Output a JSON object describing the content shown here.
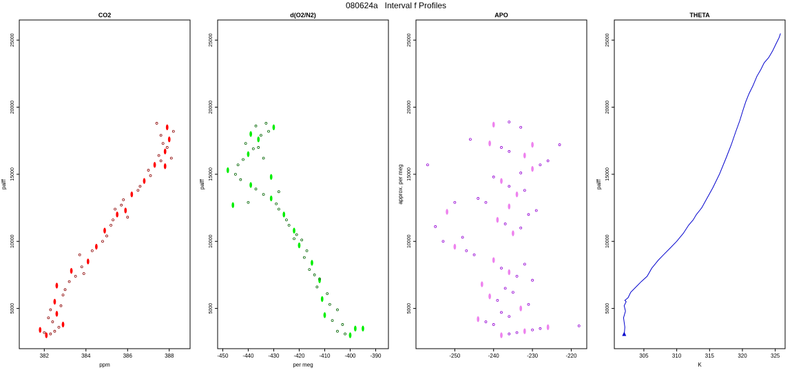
{
  "page_title": "080624a   Interval f Profiles",
  "chart_data": [
    {
      "type": "scatter",
      "title": "CO2",
      "xlabel": "ppm",
      "ylabel": "palff",
      "xlim": [
        380.8,
        389.0
      ],
      "ylim": [
        2000,
        26500
      ],
      "xticks": [
        382,
        384,
        386,
        388
      ],
      "yticks": [
        5000,
        10000,
        15000,
        20000,
        25000
      ],
      "color": "#ff0000",
      "outline_color": "#8b0000",
      "series": [
        {
          "x": [
            382.1,
            382.3,
            382.0,
            381.8,
            382.5,
            382.7,
            382.9,
            382.4,
            382.2,
            382.6,
            382.3,
            382.8,
            382.5,
            382.9,
            383.0,
            382.6,
            383.2,
            383.5,
            383.3,
            383.8,
            383.9,
            384.1,
            383.7,
            384.3,
            384.5,
            384.8,
            385.0,
            384.9,
            385.2,
            385.3,
            385.5,
            385.4,
            385.7,
            385.9,
            386.0,
            385.8,
            386.2,
            386.5,
            386.6,
            386.8,
            387.1,
            387.0,
            387.3,
            387.6,
            387.5,
            387.8,
            387.9,
            387.7,
            388.0,
            387.6,
            388.2,
            387.9,
            387.4,
            388.1,
            387.8
          ],
          "y": [
            3000,
            3100,
            3200,
            3400,
            3300,
            3600,
            3800,
            4000,
            4300,
            4600,
            4900,
            5200,
            5500,
            6000,
            6400,
            6700,
            7000,
            7400,
            7800,
            8100,
            7600,
            8500,
            9000,
            9300,
            9600,
            10000,
            10400,
            10800,
            11200,
            11600,
            12000,
            12400,
            12700,
            12300,
            11800,
            13100,
            13500,
            13800,
            14100,
            14500,
            14900,
            15300,
            15700,
            16000,
            16400,
            16700,
            17000,
            17300,
            17600,
            17900,
            18200,
            18500,
            18800,
            16200,
            15600
          ]
        }
      ]
    },
    {
      "type": "scatter",
      "title": "d(O2/N2)",
      "xlabel": "per meg",
      "ylabel": "palff",
      "xlim": [
        -452,
        -385
      ],
      "ylim": [
        2000,
        26500
      ],
      "xticks": [
        -450,
        -440,
        -430,
        -420,
        -410,
        -400,
        -390
      ],
      "yticks": [
        5000,
        10000,
        15000,
        20000,
        25000
      ],
      "color": "#00ee00",
      "outline_color": "#006400",
      "series": [
        {
          "x": [
            -400,
            -402,
            -405,
            -398,
            -403,
            -407,
            -410,
            -405,
            -408,
            -411,
            -409,
            -413,
            -412,
            -414,
            -416,
            -415,
            -418,
            -417,
            -420,
            -419,
            -421,
            -422,
            -424,
            -425,
            -426,
            -428,
            -429,
            -431,
            -434,
            -437,
            -439,
            -443,
            -445,
            -448,
            -444,
            -442,
            -440,
            -438,
            -441,
            -436,
            -435,
            -432,
            -430,
            -433,
            -437,
            -439,
            -436,
            -434,
            -431,
            -428,
            -440,
            -446,
            -422,
            -412,
            -395
          ],
          "y": [
            3000,
            3100,
            3300,
            3500,
            3800,
            4100,
            4500,
            4900,
            5300,
            5700,
            6100,
            6600,
            7100,
            7500,
            7900,
            8400,
            8800,
            9300,
            9700,
            10100,
            10500,
            10800,
            11200,
            11600,
            12000,
            12400,
            12800,
            13200,
            13500,
            13900,
            14200,
            14600,
            15000,
            15300,
            15700,
            16100,
            16500,
            16900,
            17300,
            17600,
            17900,
            18200,
            18500,
            18800,
            18600,
            18000,
            17000,
            16200,
            14800,
            13700,
            12900,
            12700,
            10200,
            7200,
            3500
          ]
        }
      ]
    },
    {
      "type": "scatter",
      "title": "APO",
      "xlabel": "",
      "ylabel": "approx. per meg",
      "xlim": [
        -260,
        -216
      ],
      "ylim": [
        2000,
        26500
      ],
      "xticks": [
        -250,
        -240,
        -230,
        -220
      ],
      "yticks": [
        5000,
        10000,
        15000,
        20000,
        25000
      ],
      "color": "#ee82ee",
      "outline_color": "#9400d3",
      "series": [
        {
          "x": [
            -238,
            -236,
            -234,
            -232,
            -230,
            -228,
            -226,
            -240,
            -242,
            -244,
            -236,
            -238,
            -233,
            -231,
            -239,
            -241,
            -235,
            -237,
            -243,
            -230,
            -234,
            -236,
            -238,
            -232,
            -240,
            -245,
            -247,
            -250,
            -253,
            -248,
            -235,
            -233,
            -237,
            -239,
            -231,
            -229,
            -236,
            -242,
            -244,
            -234,
            -232,
            -236,
            -238,
            -240,
            -233,
            -230,
            -228,
            -226,
            -232,
            -236,
            -238,
            -241,
            -246,
            -250,
            -252,
            -255,
            -257,
            -240,
            -236,
            -233,
            -230,
            -223,
            -218
          ],
          "y": [
            3000,
            3100,
            3200,
            3300,
            3400,
            3500,
            3600,
            3800,
            4000,
            4200,
            4400,
            4700,
            5000,
            5300,
            5600,
            5900,
            6200,
            6500,
            6800,
            7100,
            7400,
            7700,
            8000,
            8300,
            8600,
            9000,
            9300,
            9600,
            10000,
            10300,
            10600,
            11000,
            11300,
            11600,
            12000,
            12300,
            12600,
            12900,
            13200,
            13500,
            13800,
            14100,
            14500,
            14800,
            15100,
            15400,
            15700,
            16000,
            16400,
            16700,
            17000,
            17300,
            17600,
            12900,
            12200,
            11100,
            15700,
            18700,
            18900,
            18500,
            17200,
            17200,
            3700
          ]
        }
      ]
    },
    {
      "type": "line",
      "title": "THETA",
      "xlabel": "K",
      "ylabel": "palff",
      "xlim": [
        300.5,
        326.5
      ],
      "ylim": [
        2000,
        26500
      ],
      "xticks": [
        305,
        310,
        315,
        320,
        325
      ],
      "yticks": [
        5000,
        10000,
        15000,
        20000,
        25000
      ],
      "color": "#0000cd",
      "series": [
        {
          "x": [
            302.0,
            302.1,
            301.9,
            302.2,
            302.0,
            302.3,
            302.1,
            302.6,
            303.0,
            303.8,
            304.6,
            305.5,
            306.2,
            307.2,
            308.0,
            309.0,
            310.0,
            311.0,
            311.8,
            312.5,
            313.0,
            313.8,
            314.6,
            315.5,
            316.5,
            317.5,
            318.3,
            319.0,
            319.6,
            320.1,
            320.5,
            321.0,
            321.6,
            322.2,
            322.8,
            323.3,
            324.0,
            324.6,
            325.1,
            325.6,
            325.8
          ],
          "y": [
            3000,
            3600,
            4300,
            4800,
            5200,
            5500,
            5600,
            5800,
            6200,
            6600,
            7000,
            7400,
            8000,
            8600,
            9000,
            9500,
            10000,
            10600,
            11200,
            11600,
            12000,
            12500,
            13200,
            14000,
            15000,
            16200,
            17200,
            18200,
            19000,
            19800,
            20400,
            21000,
            21600,
            22300,
            22800,
            23300,
            23700,
            24200,
            24700,
            25200,
            25500
          ]
        }
      ]
    }
  ]
}
